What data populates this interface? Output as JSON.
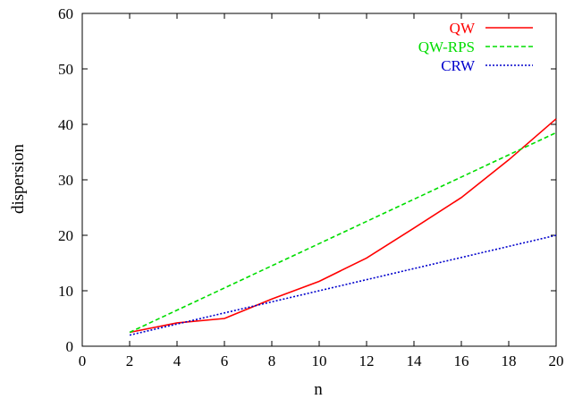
{
  "chart_data": {
    "type": "line",
    "xlabel": "n",
    "ylabel": "dispersion",
    "xlim": [
      0,
      20
    ],
    "ylim": [
      0,
      60
    ],
    "xticks": [
      0,
      2,
      4,
      6,
      8,
      10,
      12,
      14,
      16,
      18,
      20
    ],
    "yticks": [
      0,
      10,
      20,
      30,
      40,
      50,
      60
    ],
    "grid": false,
    "legend_position": "top-right",
    "series": [
      {
        "name": "QW",
        "color": "#ff0000",
        "style": "solid",
        "x": [
          2,
          4,
          6,
          8,
          10,
          12,
          14,
          16,
          18,
          20
        ],
        "y": [
          2.5,
          4.2,
          5.0,
          8.5,
          11.7,
          15.9,
          21.3,
          26.8,
          33.6,
          41.0
        ]
      },
      {
        "name": "QW-RPS",
        "color": "#00dd00",
        "style": "dashed",
        "x": [
          2,
          20
        ],
        "y": [
          2.5,
          38.5
        ]
      },
      {
        "name": "CRW",
        "color": "#0000cc",
        "style": "dotted",
        "x": [
          2,
          20
        ],
        "y": [
          2.0,
          20.0
        ]
      }
    ]
  }
}
